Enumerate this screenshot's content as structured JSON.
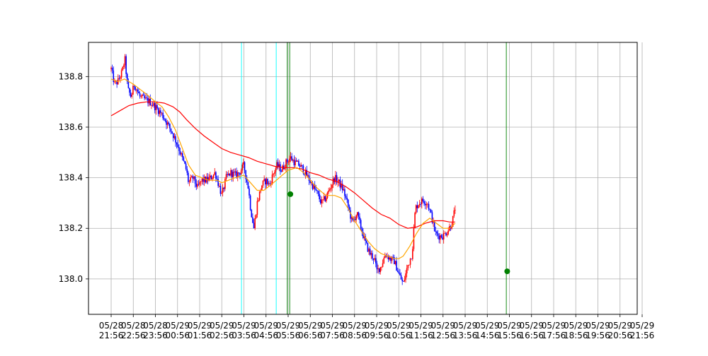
{
  "chart_data": {
    "type": "candlestick",
    "title": "",
    "xlabel": "",
    "ylabel": "",
    "grid": true,
    "ylim": [
      137.86,
      138.935
    ],
    "y_ticks": [
      138.0,
      138.2,
      138.4,
      138.6,
      138.8
    ],
    "y_tick_labels": [
      "138.0",
      "138.2",
      "138.4",
      "138.6",
      "138.8"
    ],
    "x_tick_labels": [
      [
        "05/28",
        "21:56"
      ],
      [
        "05/28",
        "22:56"
      ],
      [
        "05/28",
        "23:56"
      ],
      [
        "05/29",
        "00:56"
      ],
      [
        "05/29",
        "01:56"
      ],
      [
        "05/29",
        "02:56"
      ],
      [
        "05/29",
        "03:56"
      ],
      [
        "05/29",
        "04:56"
      ],
      [
        "05/29",
        "05:56"
      ],
      [
        "05/29",
        "06:56"
      ],
      [
        "05/29",
        "07:56"
      ],
      [
        "05/29",
        "08:56"
      ],
      [
        "05/29",
        "09:56"
      ],
      [
        "05/29",
        "10:56"
      ],
      [
        "05/29",
        "11:56"
      ],
      [
        "05/29",
        "12:56"
      ],
      [
        "05/29",
        "13:56"
      ],
      [
        "05/29",
        "14:56"
      ],
      [
        "05/29",
        "15:56"
      ],
      [
        "05/29",
        "16:56"
      ],
      [
        "05/29",
        "17:56"
      ],
      [
        "05/29",
        "18:56"
      ],
      [
        "05/29",
        "19:56"
      ],
      [
        "05/29",
        "20:56"
      ],
      [
        "05/29",
        "21:56"
      ]
    ],
    "series_colors": {
      "up_candle": "#ff0000",
      "down_candle": "#0000ff",
      "ma_fast": "#ffa500",
      "ma_slow": "#ff0000",
      "signal_marker": "#008000",
      "vline_cyan": "#00ffff",
      "vline_green": "#008000"
    },
    "close_path": [
      [
        0,
        138.83
      ],
      [
        0.15,
        138.77
      ],
      [
        0.3,
        138.78
      ],
      [
        0.5,
        138.82
      ],
      [
        0.62,
        138.87
      ],
      [
        0.75,
        138.75
      ],
      [
        0.9,
        138.72
      ],
      [
        1.05,
        138.77
      ],
      [
        1.3,
        138.72
      ],
      [
        1.5,
        138.71
      ],
      [
        1.75,
        138.7
      ],
      [
        2.0,
        138.68
      ],
      [
        2.3,
        138.65
      ],
      [
        2.5,
        138.62
      ],
      [
        2.75,
        138.58
      ],
      [
        3.0,
        138.53
      ],
      [
        3.2,
        138.48
      ],
      [
        3.4,
        138.43
      ],
      [
        3.5,
        138.38
      ],
      [
        3.7,
        138.4
      ],
      [
        3.9,
        138.36
      ],
      [
        4.1,
        138.39
      ],
      [
        4.3,
        138.39
      ],
      [
        4.5,
        138.4
      ],
      [
        4.7,
        138.42
      ],
      [
        4.9,
        138.36
      ],
      [
        5.0,
        138.33
      ],
      [
        5.2,
        138.4
      ],
      [
        5.4,
        138.42
      ],
      [
        5.6,
        138.41
      ],
      [
        5.8,
        138.42
      ],
      [
        6.0,
        138.45
      ],
      [
        6.1,
        138.4
      ],
      [
        6.2,
        138.36
      ],
      [
        6.3,
        138.28
      ],
      [
        6.45,
        138.2
      ],
      [
        6.6,
        138.3
      ],
      [
        6.8,
        138.37
      ],
      [
        7.0,
        138.39
      ],
      [
        7.15,
        138.37
      ],
      [
        7.3,
        138.41
      ],
      [
        7.5,
        138.45
      ],
      [
        7.7,
        138.43
      ],
      [
        7.9,
        138.46
      ],
      [
        8.1,
        138.48
      ],
      [
        8.3,
        138.46
      ],
      [
        8.5,
        138.45
      ],
      [
        8.7,
        138.43
      ],
      [
        8.9,
        138.4
      ],
      [
        9.1,
        138.37
      ],
      [
        9.3,
        138.34
      ],
      [
        9.5,
        138.3
      ],
      [
        9.7,
        138.32
      ],
      [
        9.9,
        138.36
      ],
      [
        10.1,
        138.4
      ],
      [
        10.3,
        138.38
      ],
      [
        10.5,
        138.35
      ],
      [
        10.7,
        138.29
      ],
      [
        10.9,
        138.22
      ],
      [
        11.1,
        138.26
      ],
      [
        11.3,
        138.2
      ],
      [
        11.5,
        138.14
      ],
      [
        11.7,
        138.1
      ],
      [
        11.9,
        138.08
      ],
      [
        12.0,
        138.03
      ],
      [
        12.2,
        138.05
      ],
      [
        12.4,
        138.1
      ],
      [
        12.6,
        138.08
      ],
      [
        12.8,
        138.07
      ],
      [
        13.0,
        138.02
      ],
      [
        13.2,
        137.98
      ],
      [
        13.4,
        138.05
      ],
      [
        13.6,
        138.1
      ],
      [
        13.75,
        138.28
      ],
      [
        13.9,
        138.3
      ],
      [
        14.1,
        138.31
      ],
      [
        14.3,
        138.3
      ],
      [
        14.5,
        138.24
      ],
      [
        14.65,
        138.18
      ],
      [
        14.8,
        138.17
      ],
      [
        15.0,
        138.17
      ],
      [
        15.2,
        138.19
      ],
      [
        15.4,
        138.22
      ],
      [
        15.55,
        138.28
      ]
    ],
    "ma_fast": [
      [
        0,
        138.79
      ],
      [
        0.3,
        138.78
      ],
      [
        0.6,
        138.79
      ],
      [
        0.8,
        138.78
      ],
      [
        1.0,
        138.77
      ],
      [
        1.3,
        138.75
      ],
      [
        1.6,
        138.73
      ],
      [
        2.0,
        138.7
      ],
      [
        2.3,
        138.68
      ],
      [
        2.6,
        138.64
      ],
      [
        2.9,
        138.59
      ],
      [
        3.2,
        138.52
      ],
      [
        3.5,
        138.45
      ],
      [
        3.8,
        138.41
      ],
      [
        4.1,
        138.4
      ],
      [
        4.4,
        138.39
      ],
      [
        4.8,
        138.39
      ],
      [
        5.0,
        138.38
      ],
      [
        5.3,
        138.39
      ],
      [
        5.6,
        138.4
      ],
      [
        6.0,
        138.41
      ],
      [
        6.3,
        138.38
      ],
      [
        6.6,
        138.35
      ],
      [
        6.9,
        138.35
      ],
      [
        7.2,
        138.37
      ],
      [
        7.6,
        138.4
      ],
      [
        8.0,
        138.43
      ],
      [
        8.4,
        138.44
      ],
      [
        8.7,
        138.42
      ],
      [
        9.0,
        138.39
      ],
      [
        9.3,
        138.36
      ],
      [
        9.7,
        138.33
      ],
      [
        10.1,
        138.33
      ],
      [
        10.4,
        138.32
      ],
      [
        10.7,
        138.28
      ],
      [
        11.0,
        138.23
      ],
      [
        11.3,
        138.19
      ],
      [
        11.6,
        138.15
      ],
      [
        11.9,
        138.12
      ],
      [
        12.2,
        138.1
      ],
      [
        12.5,
        138.09
      ],
      [
        12.8,
        138.08
      ],
      [
        13.0,
        138.08
      ],
      [
        13.2,
        138.09
      ],
      [
        13.5,
        138.13
      ],
      [
        13.8,
        138.18
      ],
      [
        14.1,
        138.22
      ],
      [
        14.4,
        138.24
      ],
      [
        14.7,
        138.22
      ],
      [
        15.0,
        138.2
      ],
      [
        15.3,
        138.2
      ],
      [
        15.55,
        138.22
      ]
    ],
    "ma_slow": [
      [
        0,
        138.645
      ],
      [
        0.4,
        138.665
      ],
      [
        0.8,
        138.685
      ],
      [
        1.2,
        138.695
      ],
      [
        1.6,
        138.7
      ],
      [
        2.0,
        138.7
      ],
      [
        2.4,
        138.695
      ],
      [
        2.8,
        138.68
      ],
      [
        3.1,
        138.66
      ],
      [
        3.4,
        138.63
      ],
      [
        3.8,
        138.595
      ],
      [
        4.2,
        138.565
      ],
      [
        4.6,
        138.54
      ],
      [
        5.0,
        138.515
      ],
      [
        5.4,
        138.5
      ],
      [
        5.8,
        138.49
      ],
      [
        6.2,
        138.48
      ],
      [
        6.6,
        138.465
      ],
      [
        7.0,
        138.455
      ],
      [
        7.4,
        138.445
      ],
      [
        7.8,
        138.44
      ],
      [
        8.2,
        138.44
      ],
      [
        8.6,
        138.435
      ],
      [
        9.0,
        138.42
      ],
      [
        9.4,
        138.41
      ],
      [
        9.8,
        138.395
      ],
      [
        10.2,
        138.385
      ],
      [
        10.6,
        138.365
      ],
      [
        11.0,
        138.34
      ],
      [
        11.4,
        138.31
      ],
      [
        11.8,
        138.28
      ],
      [
        12.2,
        138.255
      ],
      [
        12.6,
        138.24
      ],
      [
        13.0,
        138.215
      ],
      [
        13.4,
        138.2
      ],
      [
        13.8,
        138.205
      ],
      [
        14.2,
        138.22
      ],
      [
        14.6,
        138.23
      ],
      [
        15.0,
        138.23
      ],
      [
        15.3,
        138.225
      ],
      [
        15.55,
        138.225
      ]
    ],
    "vertical_lines": [
      {
        "x": 5.89,
        "color": "cyan"
      },
      {
        "x": 7.46,
        "color": "cyan"
      },
      {
        "x": 7.96,
        "color": "green"
      },
      {
        "x": 8.07,
        "color": "green"
      },
      {
        "x": 17.86,
        "color": "green"
      }
    ],
    "signal_points": [
      {
        "x": 8.1,
        "y": 138.335
      },
      {
        "x": 17.9,
        "y": 138.03
      }
    ]
  }
}
